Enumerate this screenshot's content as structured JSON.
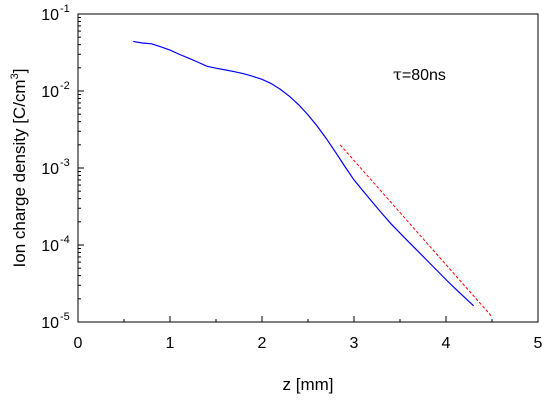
{
  "chart_data": {
    "type": "line",
    "title": "",
    "xlabel": "z [mm]",
    "ylabel_main": "Ion charge density [C/cm",
    "ylabel_sup": "3",
    "ylabel_close": "]",
    "annotation": {
      "symbol": "τ",
      "text": "=80ns"
    },
    "xlim": [
      0,
      5
    ],
    "ylim": [
      1e-05,
      0.1
    ],
    "yscale": "log",
    "grid": false,
    "legend": "none",
    "x_ticks": [
      "0",
      "1",
      "2",
      "3",
      "4",
      "5"
    ],
    "y_ticks": [
      {
        "value": 1e-05,
        "base": "10",
        "exp": "-5"
      },
      {
        "value": 0.0001,
        "base": "10",
        "exp": "-4"
      },
      {
        "value": 0.001,
        "base": "10",
        "exp": "-3"
      },
      {
        "value": 0.01,
        "base": "10",
        "exp": "-2"
      },
      {
        "value": 0.1,
        "base": "10",
        "exp": "-1"
      }
    ],
    "series": [
      {
        "style": "solid",
        "color": "#0000ff",
        "x": [
          0.6,
          0.7,
          0.8,
          0.9,
          1.0,
          1.1,
          1.2,
          1.3,
          1.4,
          1.5,
          1.6,
          1.7,
          1.8,
          1.9,
          2.0,
          2.1,
          2.2,
          2.3,
          2.4,
          2.5,
          2.6,
          2.7,
          2.8,
          2.9,
          3.0,
          3.1,
          3.2,
          3.3,
          3.4,
          3.5,
          3.6,
          3.7,
          3.8,
          3.9,
          4.0,
          4.1,
          4.2,
          4.3
        ],
        "y": [
          0.044,
          0.042,
          0.041,
          0.0375,
          0.034,
          0.03,
          0.0268,
          0.0238,
          0.021,
          0.0198,
          0.0188,
          0.0178,
          0.0168,
          0.0155,
          0.0142,
          0.0125,
          0.0105,
          0.0085,
          0.0066,
          0.0049,
          0.0035,
          0.0024,
          0.0016,
          0.00105,
          0.0007,
          0.0005,
          0.00036,
          0.00026,
          0.00019,
          0.000143,
          0.000108,
          8.2e-05,
          6.2e-05,
          4.7e-05,
          3.55e-05,
          2.72e-05,
          2.1e-05,
          1.62e-05
        ]
      },
      {
        "style": "dashed",
        "color": "#ff0000",
        "x": [
          2.85,
          4.5
        ],
        "y": [
          0.002,
          1.17e-05
        ]
      }
    ]
  }
}
